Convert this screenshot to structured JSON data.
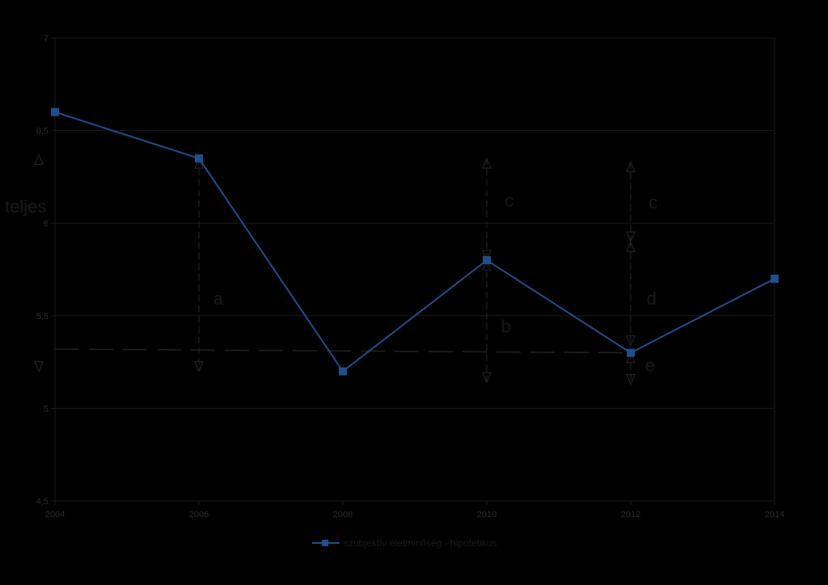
{
  "chart_data": {
    "type": "line",
    "title": "",
    "xlabel": "",
    "ylabel": "teljes",
    "x": [
      2004,
      2006,
      2008,
      2010,
      2012,
      2014
    ],
    "x_tick_labels": [
      "2004",
      "2006",
      "2008",
      "2010",
      "2012",
      "2014"
    ],
    "y_tick_labels": [
      "4,5",
      "5",
      "5,5",
      "6",
      "6,5",
      "7"
    ],
    "y_ticks": [
      4.5,
      5,
      5.5,
      6,
      6.5,
      7
    ],
    "ylim": [
      4.5,
      7
    ],
    "xlim": [
      2004,
      2014
    ],
    "grid": true,
    "legend_position": "bottom",
    "series": [
      {
        "name": "szubjektív életminőség - hipotetikus",
        "values": [
          6.6,
          6.35,
          5.2,
          5.8,
          5.3,
          5.7
        ],
        "color": "#1f4e8c"
      }
    ],
    "trend_line": {
      "from": [
        2004,
        5.32
      ],
      "to": [
        2012,
        5.3
      ],
      "style": "dashed"
    },
    "annotations": [
      {
        "label": "a",
        "x": 2006.2,
        "y": 5.56
      },
      {
        "label": "b",
        "x": 2010.2,
        "y": 5.41
      },
      {
        "label": "c",
        "x": 2010.25,
        "y": 6.09
      },
      {
        "label": "c",
        "x": 2012.25,
        "y": 6.08
      },
      {
        "label": "d",
        "x": 2012.22,
        "y": 5.56
      },
      {
        "label": "e",
        "x": 2012.2,
        "y": 5.2
      }
    ],
    "arrows": [
      {
        "x": 2006,
        "y_from": 5.2,
        "y_to": 6.35,
        "heads": "both"
      },
      {
        "x": 2010,
        "y_from": 6.35,
        "y_to": 5.8,
        "heads": "both"
      },
      {
        "x": 2010,
        "y_from": 5.8,
        "y_to": 5.14,
        "heads": "both"
      },
      {
        "x": 2012,
        "y_from": 6.33,
        "y_to": 5.9,
        "heads": "both"
      },
      {
        "x": 2012,
        "y_from": 5.9,
        "y_to": 5.34,
        "heads": "both"
      },
      {
        "x": 2012,
        "y_from": 5.3,
        "y_to": 5.13,
        "heads": "both"
      }
    ],
    "left_markers": [
      {
        "y": 6.37,
        "dir": "up"
      },
      {
        "y": 5.2,
        "dir": "down"
      }
    ]
  }
}
